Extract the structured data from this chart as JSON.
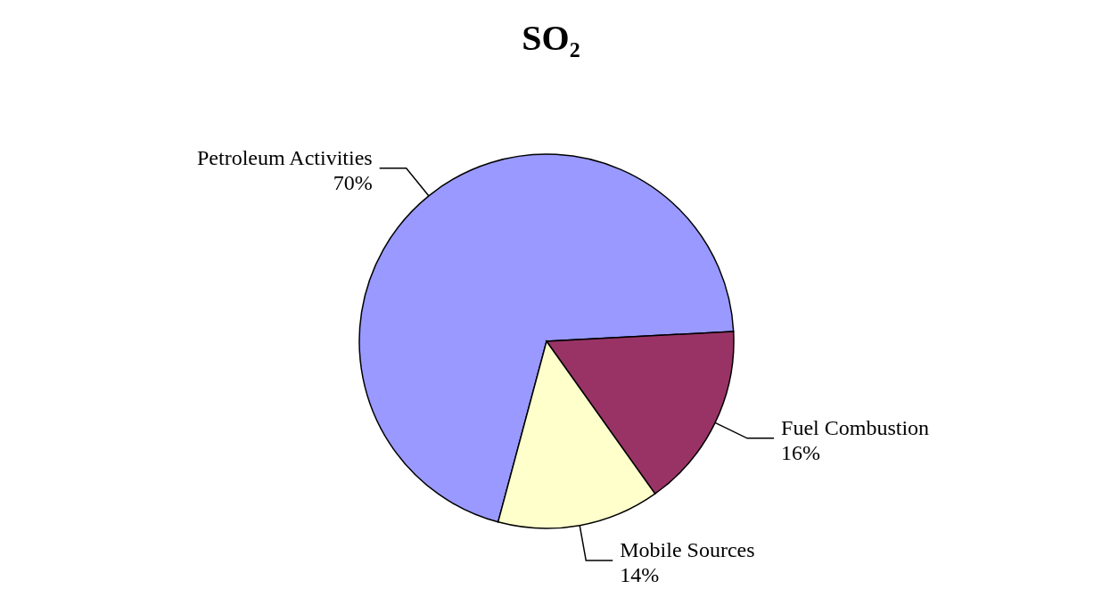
{
  "chart_data": {
    "type": "pie",
    "title": "SO₂",
    "categories": [
      "Petroleum Activities",
      "Fuel Combustion",
      "Mobile Sources"
    ],
    "values": [
      70,
      16,
      14
    ],
    "value_labels": [
      "70%",
      "16%",
      "14%"
    ],
    "colors": [
      "#9999ff",
      "#993366",
      "#ffffcc"
    ],
    "legend": false
  }
}
